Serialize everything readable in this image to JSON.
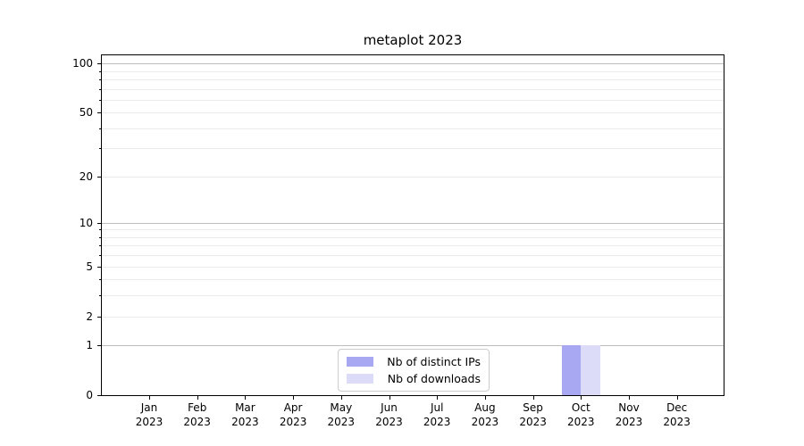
{
  "chart_data": {
    "type": "bar",
    "title": "metaplot 2023",
    "categories": [
      "Jan 2023",
      "Feb 2023",
      "Mar 2023",
      "Apr 2023",
      "May 2023",
      "Jun 2023",
      "Jul 2023",
      "Aug 2023",
      "Sep 2023",
      "Oct 2023",
      "Nov 2023",
      "Dec 2023"
    ],
    "series": [
      {
        "name": "Nb of distinct IPs",
        "color": "#a8a8f2",
        "values": [
          0,
          0,
          0,
          0,
          0,
          0,
          0,
          0,
          0,
          1,
          0,
          0
        ]
      },
      {
        "name": "Nb of downloads",
        "color": "#dcdcf8",
        "values": [
          0,
          0,
          0,
          0,
          0,
          0,
          0,
          0,
          0,
          1,
          0,
          0
        ]
      }
    ],
    "xlabel": "",
    "ylabel": "",
    "y_axis": {
      "scale": "log1p",
      "min": 0,
      "max": 112,
      "labeled_ticks": [
        100,
        50,
        20,
        10,
        5,
        2,
        1,
        0
      ],
      "major_gridlines": [
        1,
        10,
        100
      ],
      "minor_gridlines": [
        2,
        3,
        4,
        5,
        6,
        7,
        8,
        9,
        20,
        30,
        40,
        50,
        60,
        70,
        80,
        90
      ],
      "major_grid_color": "#bdbdbd",
      "minor_grid_color": "#ebebeb"
    },
    "grid": "horizontal, major and minor, on",
    "legend_position": "lower center"
  }
}
